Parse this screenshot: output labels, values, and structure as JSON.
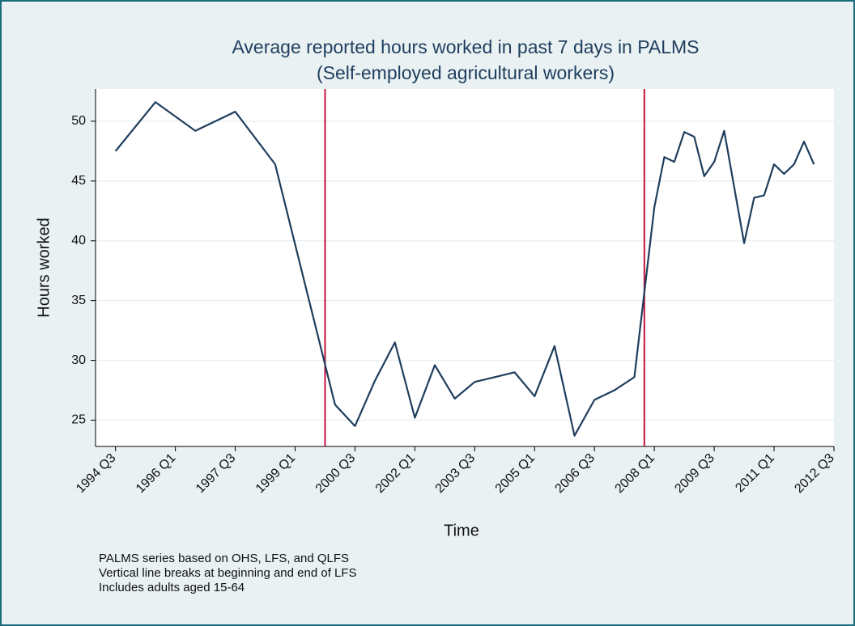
{
  "chart_data": {
    "type": "line",
    "title": "Average reported hours worked in past 7 days in PALMS",
    "subtitle": "(Self-employed agricultural workers)",
    "x_label": "Time",
    "y_label": "Hours worked",
    "notes": [
      "PALMS series based on OHS, LFS, and QLFS",
      "Vertical line breaks at beginning and end of LFS",
      "Includes adults aged 15-64"
    ],
    "color": "#1f3e5e",
    "vline_color": "#c0143c",
    "grid": true,
    "x": [
      "1994 Q3",
      "1995 Q3",
      "1996 Q3",
      "1997 Q3",
      "1998 Q3",
      "2000 Q1",
      "2000 Q3",
      "2001 Q1",
      "2001 Q3",
      "2002 Q1",
      "2002 Q3",
      "2003 Q1",
      "2003 Q3",
      "2004 Q1",
      "2004 Q3",
      "2005 Q1",
      "2005 Q3",
      "2006 Q1",
      "2006 Q3",
      "2007 Q1",
      "2007 Q3",
      "2008 Q1",
      "2008 Q2",
      "2008 Q3",
      "2008 Q4",
      "2009 Q1",
      "2009 Q2",
      "2009 Q3",
      "2009 Q4",
      "2010 Q1",
      "2010 Q2",
      "2010 Q3",
      "2010 Q4",
      "2011 Q1",
      "2011 Q2",
      "2011 Q3",
      "2011 Q4",
      "2012 Q1"
    ],
    "values": [
      47.5,
      51.6,
      49.2,
      50.8,
      46.4,
      26.3,
      24.5,
      28.3,
      31.5,
      25.2,
      29.6,
      26.8,
      28.2,
      28.6,
      29.0,
      27.0,
      31.2,
      23.7,
      26.7,
      27.5,
      28.6,
      42.8,
      47.0,
      46.6,
      49.1,
      48.7,
      45.4,
      46.6,
      49.2,
      44.5,
      39.8,
      43.6,
      43.8,
      46.4,
      45.6,
      46.4,
      48.3,
      46.4
    ],
    "vlines": [
      "1999 Q4",
      "2007 Q4"
    ],
    "xlim": [
      "1994 Q1",
      "2012 Q3"
    ],
    "xticks": [
      "1994 Q3",
      "1996 Q1",
      "1997 Q3",
      "1999 Q1",
      "2000 Q3",
      "2002 Q1",
      "2003 Q3",
      "2005 Q1",
      "2006 Q3",
      "2008 Q1",
      "2009 Q3",
      "2011 Q1",
      "2012 Q3"
    ],
    "ylim": [
      22.8,
      52.7
    ],
    "yticks": [
      25,
      30,
      35,
      40,
      45,
      50
    ]
  }
}
